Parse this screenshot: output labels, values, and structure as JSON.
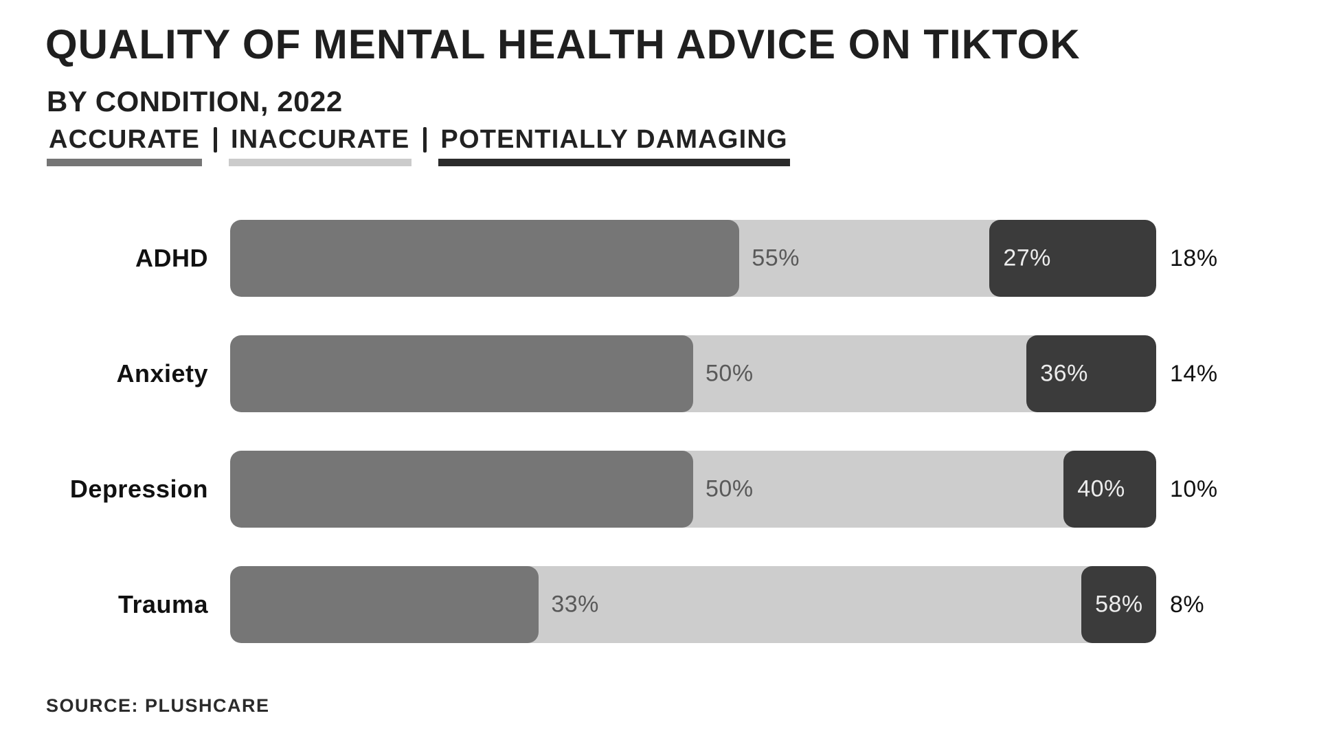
{
  "header": {
    "title": "QUALITY OF MENTAL HEALTH ADVICE ON TIKTOK",
    "subtitle": "BY CONDITION, 2022",
    "legend_separator": "|"
  },
  "chart_data": {
    "type": "bar",
    "orientation": "horizontal",
    "stacked": true,
    "unit": "%",
    "xlim": [
      0,
      100
    ],
    "grid": false,
    "legend_position": "top",
    "title": "QUALITY OF MENTAL HEALTH ADVICE ON TIKTOK",
    "subtitle": "BY CONDITION, 2022",
    "categories": [
      "ADHD",
      "Anxiety",
      "Depression",
      "Trauma"
    ],
    "series": [
      {
        "name": "ACCURATE",
        "color": "#767676",
        "values": [
          55,
          50,
          50,
          33
        ]
      },
      {
        "name": "INACCURATE",
        "color": "#cdcdcd",
        "values": [
          27,
          36,
          40,
          58
        ]
      },
      {
        "name": "POTENTIALLY DAMAGING",
        "color": "#3b3b3b",
        "values": [
          18,
          14,
          10,
          8
        ]
      }
    ],
    "value_label_colors": {
      "on_accurate_boundary": "#595959",
      "on_damaging_segment": "#ececec",
      "outside_bar": "#121212"
    },
    "legend_underline_colors": [
      "#757575",
      "#cbcbcb",
      "#2b2b2b"
    ]
  },
  "source": {
    "label": "SOURCE: PLUSHCARE"
  },
  "colors": {
    "background": "#ffffff",
    "text": "#1f1f1f"
  }
}
